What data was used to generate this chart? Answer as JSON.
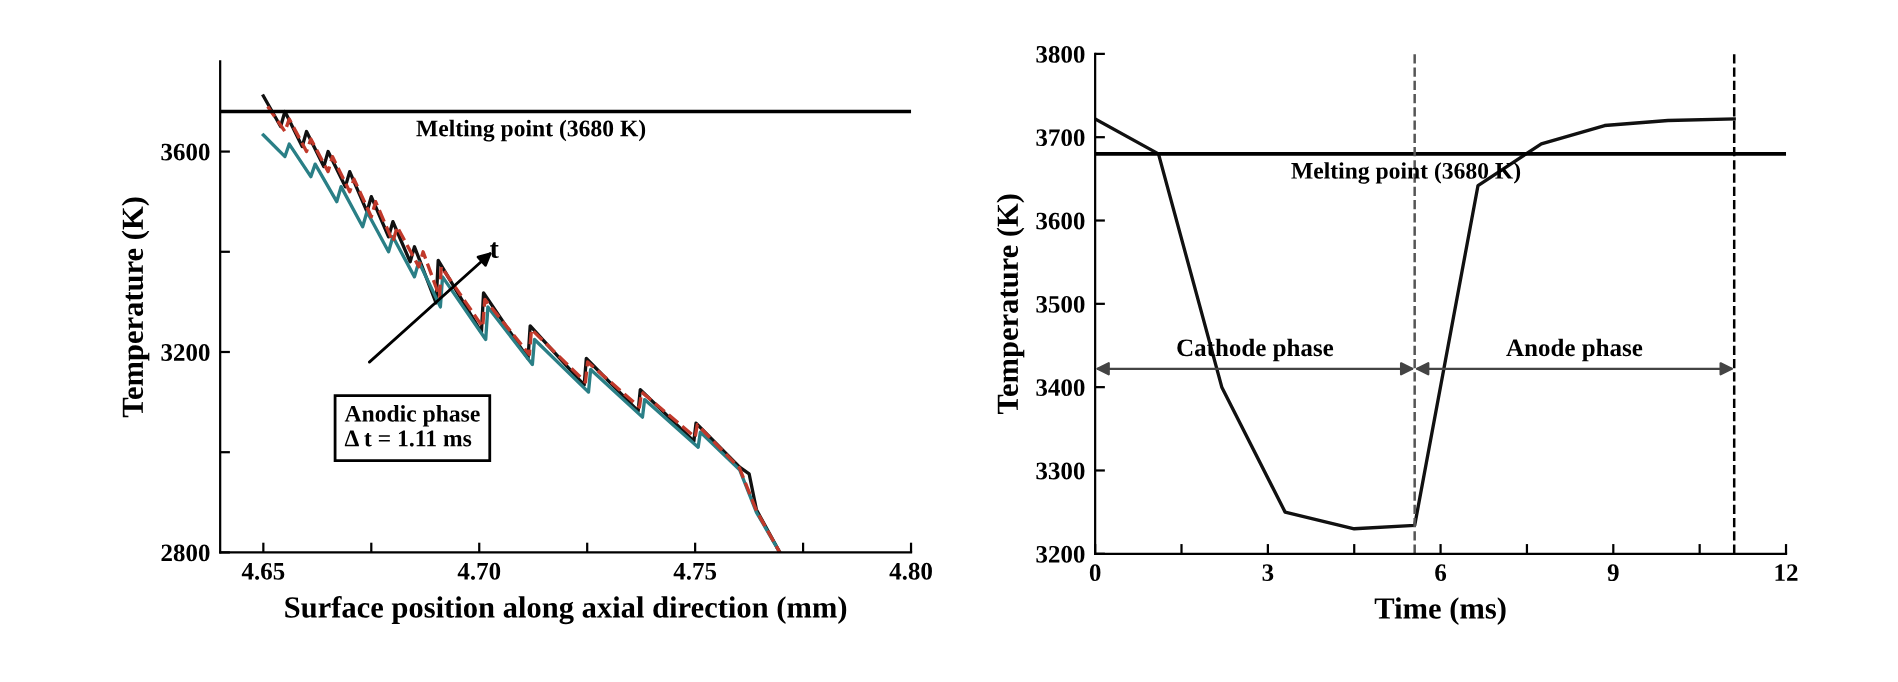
{
  "chart_data": [
    {
      "type": "line",
      "xlabel": "Surface position along axial direction (mm)",
      "ylabel": "Temperature (K)",
      "xlim": [
        4.64,
        4.8
      ],
      "xticks": [
        4.65,
        {
          "value": 4.675,
          "label": null
        },
        "4.70",
        {
          "value": 4.725,
          "label": null
        },
        4.75,
        {
          "value": 4.775,
          "label": null
        },
        "4.80"
      ],
      "ylim": [
        2800,
        3780
      ],
      "yticks": [
        2800,
        {
          "value": 3000,
          "label": null
        },
        3200,
        {
          "value": 3400,
          "label": null
        },
        3600
      ],
      "series": [
        {
          "color": "#111111",
          "line_style": "solid",
          "x": [
            4.65,
            4.654,
            4.655,
            4.659,
            4.66,
            4.664,
            4.665,
            4.669,
            4.67,
            4.674,
            4.675,
            4.679,
            4.68,
            4.684,
            4.685,
            4.69,
            4.6905,
            4.7005,
            4.701,
            4.7113,
            4.7118,
            4.7243,
            4.7248,
            4.7368,
            4.7373,
            4.7497,
            4.7502,
            4.7603,
            4.7625,
            4.7642,
            4.7696
          ],
          "values": [
            3711,
            3650,
            3680,
            3610,
            3640,
            3570,
            3600,
            3530,
            3560,
            3480,
            3510,
            3430,
            3460,
            3380,
            3410,
            3298,
            3383,
            3239,
            3318,
            3187,
            3252,
            3134,
            3187,
            3082,
            3125,
            3022,
            3058,
            2970,
            2957,
            2885,
            2800
          ]
        },
        {
          "color": "#2a7f86",
          "line_style": "solid",
          "x": [
            4.65,
            4.655,
            4.656,
            4.661,
            4.662,
            4.667,
            4.668,
            4.673,
            4.674,
            4.679,
            4.68,
            4.685,
            4.686,
            4.691,
            4.6915,
            4.7015,
            4.702,
            4.7123,
            4.7128,
            4.7253,
            4.7258,
            4.7378,
            4.7383,
            4.7507,
            4.7512,
            4.7603,
            4.7642,
            4.7696
          ],
          "values": [
            3633,
            3590,
            3615,
            3550,
            3575,
            3500,
            3530,
            3450,
            3480,
            3400,
            3430,
            3350,
            3380,
            3290,
            3350,
            3225,
            3290,
            3175,
            3225,
            3120,
            3165,
            3070,
            3105,
            3010,
            3040,
            2965,
            2880,
            2800
          ]
        },
        {
          "color": "#c0392b",
          "line_style": "dashed",
          "x": [
            4.651,
            4.655,
            4.656,
            4.66,
            4.661,
            4.665,
            4.666,
            4.67,
            4.671,
            4.675,
            4.676,
            4.68,
            4.681,
            4.686,
            4.687,
            4.6908,
            4.6912,
            4.7008,
            4.7013,
            4.7116,
            4.7121,
            4.7246,
            4.7251,
            4.7371,
            4.7376,
            4.75,
            4.7505,
            4.7603,
            4.7642,
            4.7696
          ],
          "values": [
            3690,
            3640,
            3665,
            3600,
            3625,
            3560,
            3590,
            3520,
            3545,
            3470,
            3500,
            3420,
            3450,
            3370,
            3400,
            3310,
            3370,
            3250,
            3305,
            3195,
            3245,
            3140,
            3180,
            3090,
            3120,
            3030,
            3055,
            2968,
            2883,
            2800
          ]
        }
      ],
      "ref_lines": [
        {
          "axis": "y",
          "value": 3680,
          "label": "Melting point (3680 K)",
          "color": "#000000",
          "line_style": "solid"
        }
      ],
      "annotations": [
        "t",
        "Anodic phase\nΔ t = 1.11 ms"
      ]
    },
    {
      "type": "line",
      "xlabel": "Time (ms)",
      "ylabel": "Temperature (K)",
      "xlim": [
        0,
        12
      ],
      "xticks": [
        0,
        {
          "value": 1.5,
          "label": null
        },
        3,
        {
          "value": 4.5,
          "label": null
        },
        6,
        {
          "value": 7.5,
          "label": null
        },
        9,
        {
          "value": 10.5,
          "label": null
        },
        12
      ],
      "ylim": [
        3200,
        3800
      ],
      "yticks": [
        3200,
        3300,
        3400,
        3500,
        3600,
        3700,
        3800
      ],
      "series": [
        {
          "color": "#111111",
          "line_style": "solid",
          "x": [
            0,
            1.1,
            2.2,
            3.3,
            4.5,
            5.55,
            6.65,
            7.75,
            8.85,
            9.95,
            11.1
          ],
          "values": [
            3722,
            3680,
            3400,
            3250,
            3230,
            3234,
            3642,
            3692,
            3714,
            3720,
            3722
          ]
        }
      ],
      "ref_lines": [
        {
          "axis": "y",
          "value": 3680,
          "label": "Melting point (3680 K)",
          "color": "#000000",
          "line_style": "solid"
        },
        {
          "axis": "x",
          "value": 5.55,
          "label": null,
          "color": "#555555",
          "line_style": "dashed"
        },
        {
          "axis": "x",
          "value": 11.1,
          "label": null,
          "color": "#000000",
          "line_style": "dashed"
        }
      ],
      "annotations": [
        "Cathode phase",
        "Anode phase"
      ]
    }
  ]
}
